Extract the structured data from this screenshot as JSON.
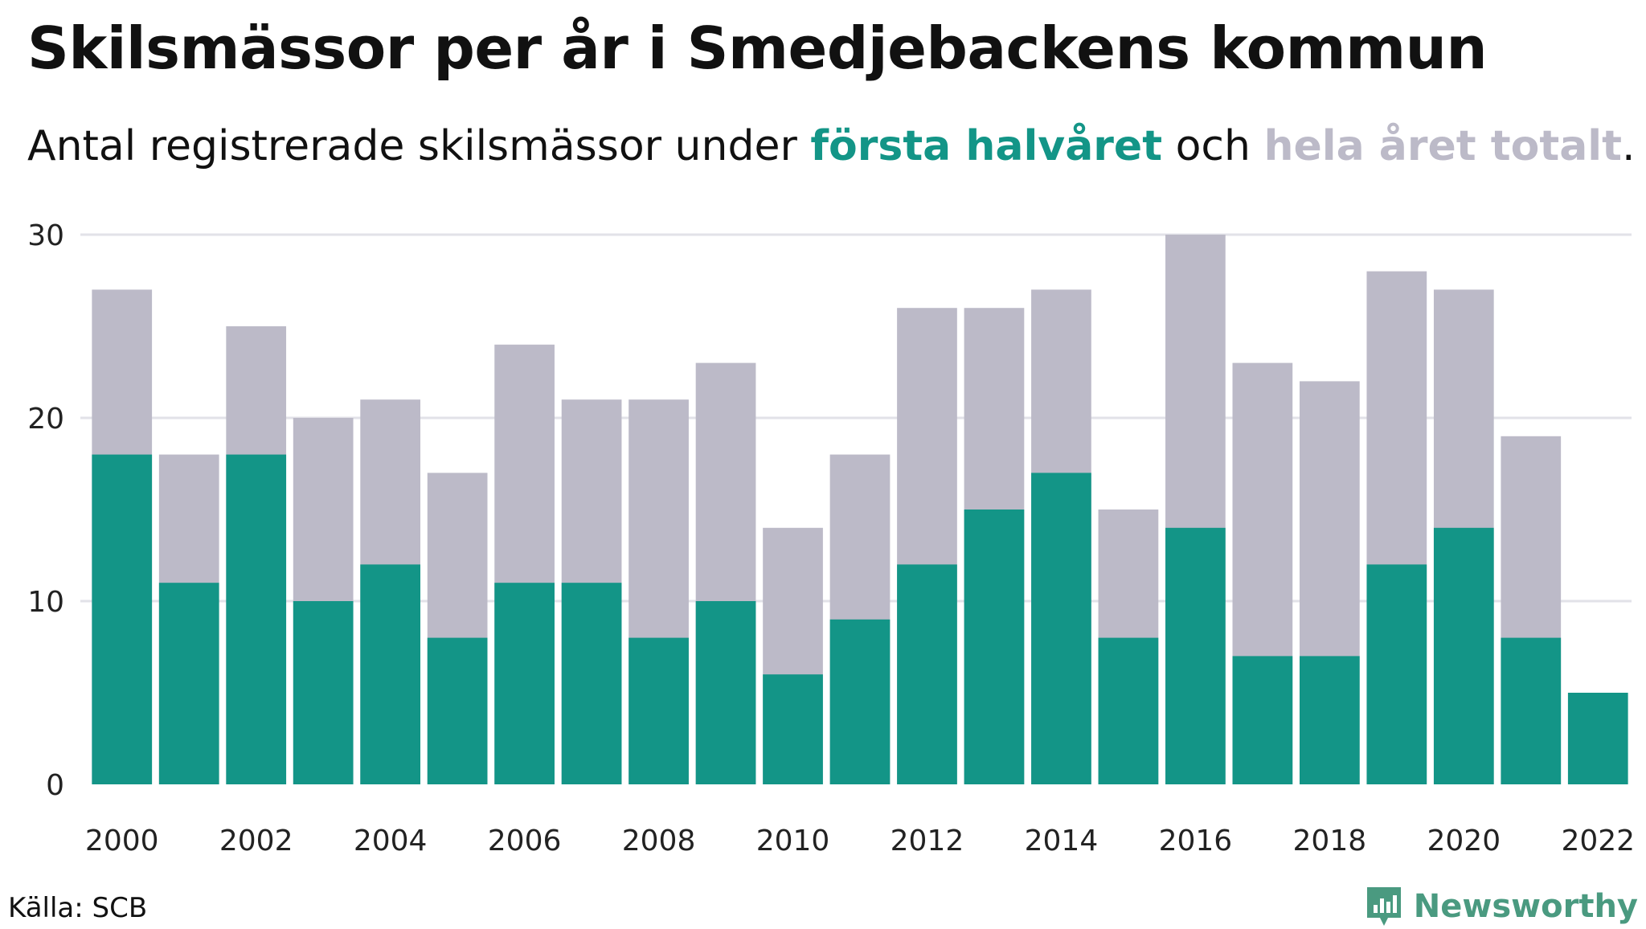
{
  "title": "Skilsmässor per år i Smedjebackens kommun",
  "subtitle": {
    "prefix": "Antal registrerade skilsmässor under ",
    "series1": "första halvåret",
    "middle": " och ",
    "series2": "hela året totalt",
    "suffix": "."
  },
  "source": "Källa: SCB",
  "brand": "Newsworthy",
  "colors": {
    "first_half": "#139587",
    "full_year": "#bcbac8",
    "grid": "#e2e2e8",
    "brand": "#4a9a80"
  },
  "chart_data": {
    "type": "bar",
    "stacking": "overlay",
    "categories": [
      "2000",
      "2001",
      "2002",
      "2003",
      "2004",
      "2005",
      "2006",
      "2007",
      "2008",
      "2009",
      "2010",
      "2011",
      "2012",
      "2013",
      "2014",
      "2015",
      "2016",
      "2017",
      "2018",
      "2019",
      "2020",
      "2021",
      "2022"
    ],
    "x_tick_labels": [
      "2000",
      "2002",
      "2004",
      "2006",
      "2008",
      "2010",
      "2012",
      "2014",
      "2016",
      "2018",
      "2020",
      "2022"
    ],
    "y_ticks": [
      0,
      10,
      20,
      30
    ],
    "ylim": [
      0,
      30
    ],
    "grid": true,
    "series": [
      {
        "name": "hela året totalt",
        "values": [
          27,
          18,
          25,
          20,
          21,
          17,
          24,
          21,
          21,
          23,
          14,
          18,
          26,
          26,
          27,
          15,
          30,
          23,
          22,
          28,
          27,
          19,
          null
        ]
      },
      {
        "name": "första halvåret",
        "values": [
          18,
          11,
          18,
          10,
          12,
          8,
          11,
          11,
          8,
          10,
          6,
          9,
          12,
          15,
          17,
          8,
          14,
          7,
          7,
          12,
          14,
          8,
          5
        ]
      }
    ]
  }
}
